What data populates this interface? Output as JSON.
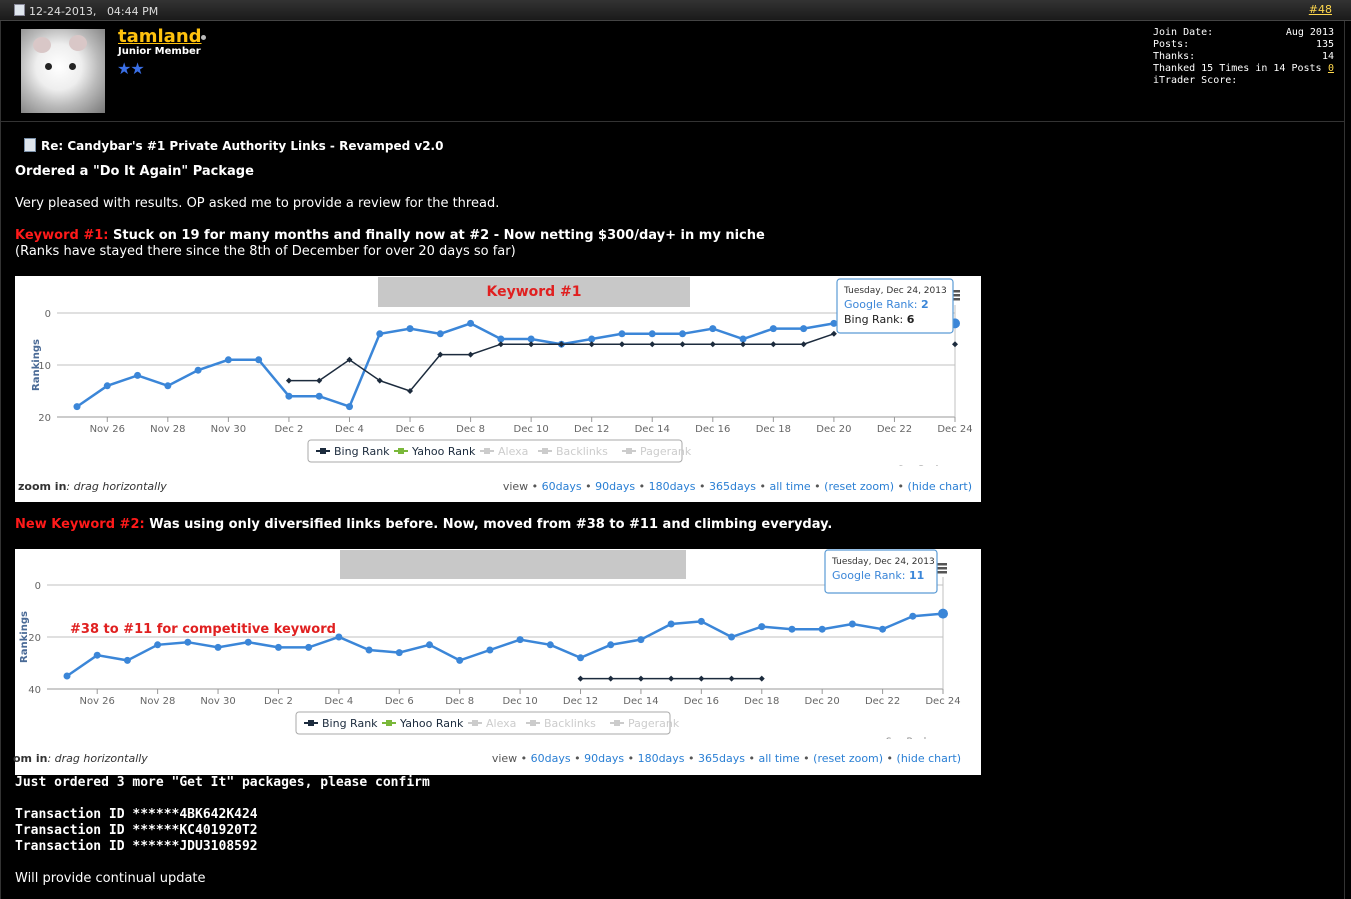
{
  "post": {
    "date": "12-24-2013,",
    "time": "04:44 PM",
    "number": "#48"
  },
  "user": {
    "name": "tamland",
    "title": "Junior Member",
    "stars": "★★",
    "join_date_label": "Join Date:",
    "join_date": "Aug 2013",
    "posts_label": "Posts:",
    "posts": "135",
    "thanks_label": "Thanks:",
    "thanks": "14",
    "thanked_label": "Thanked 15 Times in 14 Posts",
    "thanked_link": "0",
    "itrader_label": "iTrader Score:"
  },
  "body": {
    "title": "Re: Candybar's #1 Private Authority Links - Revamped v2.0",
    "line1": "Ordered a \"Do It Again\" Package",
    "line2": "Very pleased with results. OP asked me to provide a review for the thread.",
    "kw1_label": "Keyword #1:",
    "kw1_text": " Stuck on 19 for many months and finally now at #2 - Now netting $300/day+ in my niche",
    "kw1_note": "(Ranks have stayed there since the 8th of December for over 20 days so far)",
    "kw2_label": "New Keyword #2:",
    "kw2_text": " Was using only diversified links before. Now, moved from #38 to #11 and climbing everyday.",
    "order_line": "Just ordered 3 more \"Get It\" packages, please confirm",
    "tx1": "Transaction ID ******4BK642K424",
    "tx2": "Transaction ID ******KC401920T2",
    "tx3": "Transaction ID ******JDU3108592",
    "closing": "Will provide continual update"
  },
  "chart_common": {
    "zoom_label": "zoom in",
    "zoom_hint": ": drag horizontally",
    "zoom_label_cut": "om in",
    "view_label": "view •",
    "range_links": [
      "60days",
      "90days",
      "180days",
      "365days",
      "all time",
      "(reset zoom)",
      "(hide chart)"
    ],
    "credit": "SerpBook.com",
    "legend": [
      "Bing Rank",
      "Yahoo Rank",
      "Alexa",
      "Backlinks",
      "Pagerank"
    ]
  },
  "chart_data": [
    {
      "type": "line",
      "title": "Keyword #1",
      "ylabel": "Rankings",
      "ylim": [
        20,
        0
      ],
      "yticks": [
        0,
        10,
        20
      ],
      "xticks": [
        "Nov 26",
        "Nov 28",
        "Nov 30",
        "Dec 2",
        "Dec 4",
        "Dec 6",
        "Dec 8",
        "Dec 10",
        "Dec 12",
        "Dec 14",
        "Dec 16",
        "Dec 18",
        "Dec 20",
        "Dec 22",
        "Dec 24"
      ],
      "x_start": "Nov 25",
      "series": [
        {
          "name": "Google Rank",
          "color": "#3b86d8",
          "values": [
            18,
            14,
            12,
            14,
            11,
            9,
            9,
            16,
            16,
            18,
            4,
            3,
            4,
            2,
            5,
            5,
            6,
            5,
            4,
            4,
            4,
            3,
            5,
            3,
            3,
            2,
            2,
            2,
            2,
            2
          ]
        },
        {
          "name": "Bing Rank",
          "color": "#1c2b3d",
          "values": [
            null,
            null,
            null,
            null,
            null,
            null,
            null,
            13,
            13,
            9,
            13,
            15,
            8,
            8,
            6,
            6,
            6,
            6,
            6,
            6,
            6,
            6,
            6,
            6,
            6,
            4,
            null,
            null,
            null,
            6
          ]
        }
      ],
      "tooltip": {
        "date": "Tuesday, Dec 24, 2013",
        "google_label": "Google Rank:",
        "google_value": "2",
        "bing_label": "Bing Rank:",
        "bing_value": "6"
      }
    },
    {
      "type": "line",
      "title": "",
      "ylabel": "Rankings",
      "ylim": [
        40,
        0
      ],
      "yticks": [
        0,
        20,
        40
      ],
      "xticks": [
        "Nov 26",
        "Nov 28",
        "Nov 30",
        "Dec 2",
        "Dec 4",
        "Dec 6",
        "Dec 8",
        "Dec 10",
        "Dec 12",
        "Dec 14",
        "Dec 16",
        "Dec 18",
        "Dec 20",
        "Dec 22",
        "Dec 24"
      ],
      "x_start": "Nov 25",
      "annotation": "#38 to #11 for competitive keyword",
      "series": [
        {
          "name": "Google Rank",
          "color": "#3b86d8",
          "values": [
            35,
            27,
            29,
            23,
            22,
            24,
            22,
            24,
            24,
            20,
            25,
            26,
            23,
            29,
            25,
            21,
            23,
            28,
            23,
            21,
            15,
            14,
            20,
            16,
            17,
            17,
            15,
            17,
            12,
            11
          ]
        },
        {
          "name": "Bing Rank",
          "color": "#1c2b3d",
          "values": [
            null,
            null,
            null,
            null,
            null,
            null,
            null,
            null,
            null,
            null,
            null,
            null,
            null,
            null,
            null,
            null,
            null,
            36,
            36,
            36,
            36,
            36,
            36,
            36,
            null,
            null,
            null,
            null,
            null,
            null
          ]
        }
      ],
      "tooltip": {
        "date": "Tuesday, Dec 24, 2013",
        "google_label": "Google Rank:",
        "google_value": "11"
      }
    }
  ],
  "colors": {
    "accent": "#ffc20e",
    "link": "#2a7fd4",
    "keyword_red": "#ff1a1a"
  }
}
